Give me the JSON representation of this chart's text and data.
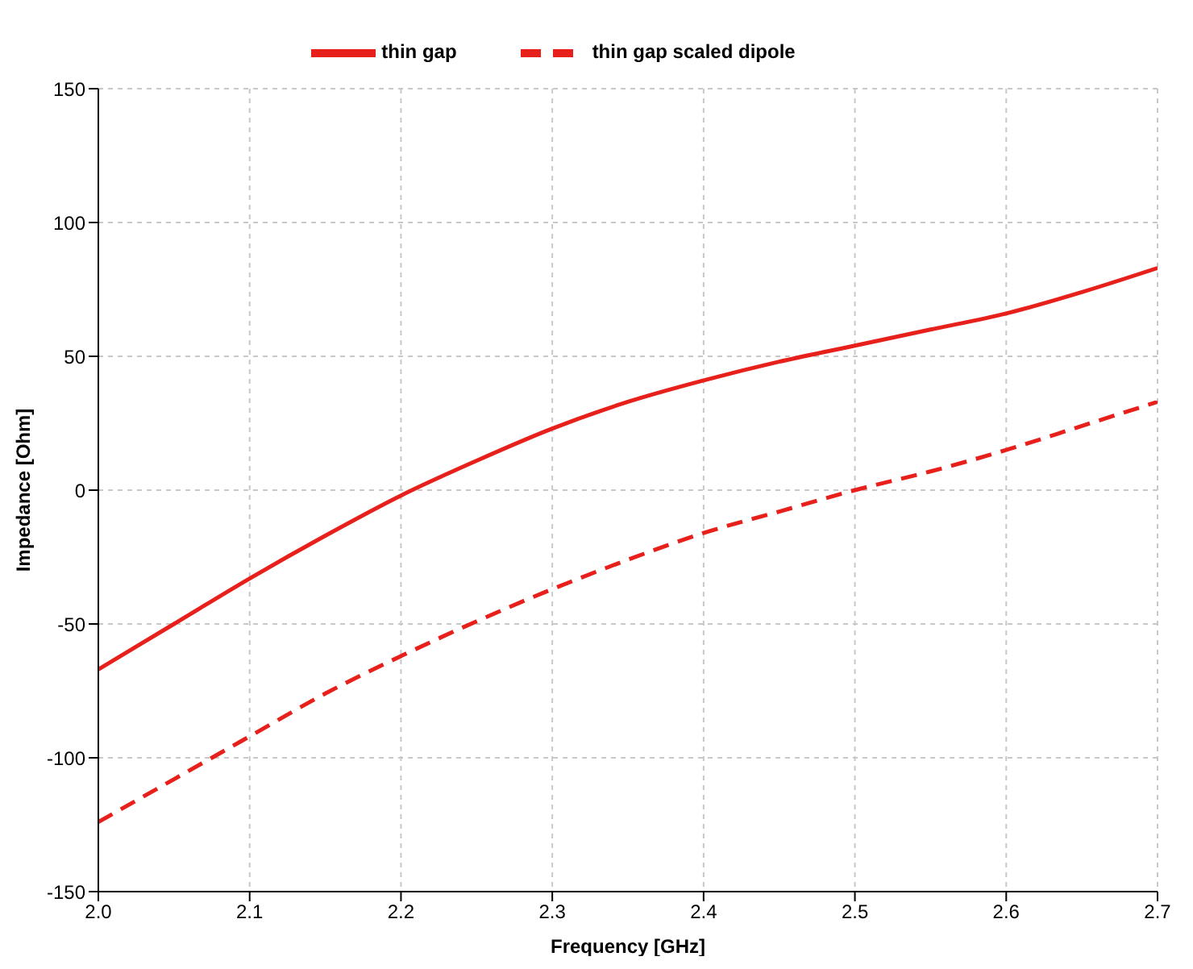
{
  "chart_data": {
    "type": "line",
    "xlabel": "Frequency [GHz]",
    "ylabel": "Impedance [Ohm]",
    "x": [
      2.0,
      2.05,
      2.1,
      2.15,
      2.2,
      2.25,
      2.3,
      2.35,
      2.4,
      2.45,
      2.5,
      2.55,
      2.6,
      2.65,
      2.7
    ],
    "series": [
      {
        "name": "thin gap",
        "color": "#e8201c",
        "line_style": "solid",
        "values": [
          -67,
          -50,
          -33,
          -17,
          -2,
          11,
          23,
          33,
          41,
          48,
          54,
          60,
          66,
          74,
          83
        ]
      },
      {
        "name": "thin gap scaled dipole",
        "color": "#e8201c",
        "line_style": "dashed",
        "values": [
          -124,
          -108,
          -92,
          -76,
          -62,
          -49,
          -37,
          -26,
          -16,
          -8,
          0,
          7,
          15,
          24,
          33
        ]
      }
    ],
    "xlim": [
      2.0,
      2.7
    ],
    "xticks": [
      {
        "value": 2.0,
        "label": "2.0"
      },
      {
        "value": 2.1,
        "label": "2.1"
      },
      {
        "value": 2.2,
        "label": "2.2"
      },
      {
        "value": 2.3,
        "label": "2.3"
      },
      {
        "value": 2.4,
        "label": "2.4"
      },
      {
        "value": 2.5,
        "label": "2.5"
      },
      {
        "value": 2.6,
        "label": "2.6"
      },
      {
        "value": 2.7,
        "label": "2.7"
      }
    ],
    "ylim": [
      -150,
      150
    ],
    "yticks": [
      -150,
      -100,
      -50,
      0,
      50,
      100,
      150
    ],
    "grid": true,
    "legend": "top",
    "marker": "none"
  }
}
